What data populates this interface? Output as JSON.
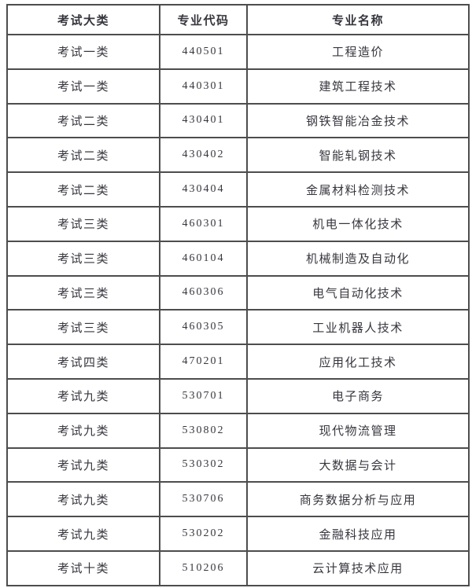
{
  "table": {
    "headers": [
      "考试大类",
      "专业代码",
      "专业名称"
    ],
    "rows": [
      {
        "category": "考试一类",
        "code": "440501",
        "name": "工程造价"
      },
      {
        "category": "考试一类",
        "code": "440301",
        "name": "建筑工程技术"
      },
      {
        "category": "考试二类",
        "code": "430401",
        "name": "钢铁智能冶金技术"
      },
      {
        "category": "考试二类",
        "code": "430402",
        "name": "智能轧钢技术"
      },
      {
        "category": "考试二类",
        "code": "430404",
        "name": "金属材料检测技术"
      },
      {
        "category": "考试三类",
        "code": "460301",
        "name": "机电一体化技术"
      },
      {
        "category": "考试三类",
        "code": "460104",
        "name": "机械制造及自动化"
      },
      {
        "category": "考试三类",
        "code": "460306",
        "name": "电气自动化技术"
      },
      {
        "category": "考试三类",
        "code": "460305",
        "name": "工业机器人技术"
      },
      {
        "category": "考试四类",
        "code": "470201",
        "name": "应用化工技术"
      },
      {
        "category": "考试九类",
        "code": "530701",
        "name": "电子商务"
      },
      {
        "category": "考试九类",
        "code": "530802",
        "name": "现代物流管理"
      },
      {
        "category": "考试九类",
        "code": "530302",
        "name": "大数据与会计"
      },
      {
        "category": "考试九类",
        "code": "530706",
        "name": "商务数据分析与应用"
      },
      {
        "category": "考试九类",
        "code": "530202",
        "name": "金融科技应用"
      },
      {
        "category": "考试十类",
        "code": "510206",
        "name": "云计算技术应用"
      }
    ],
    "colors": {
      "border": "#4d4d4d",
      "text": "#36363e",
      "background": "#ffffff"
    }
  }
}
